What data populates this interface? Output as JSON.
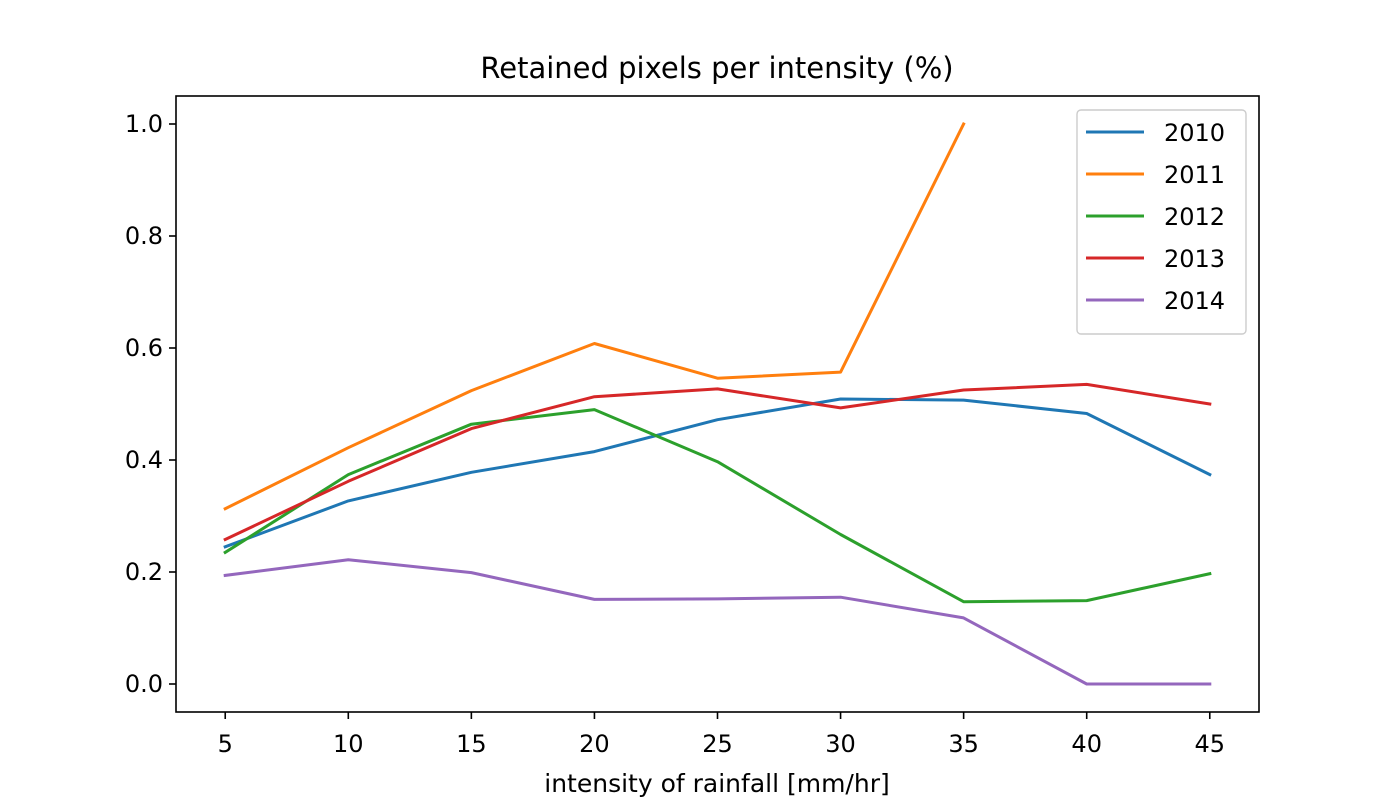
{
  "chart_data": {
    "type": "line",
    "title": "Retained pixels per intensity (%)",
    "xlabel": "intensity of rainfall [mm/hr]",
    "ylabel": "",
    "x": [
      5,
      10,
      15,
      20,
      25,
      30,
      35,
      40,
      45
    ],
    "xticks": [
      "5",
      "10",
      "15",
      "20",
      "25",
      "30",
      "35",
      "40",
      "45"
    ],
    "yticks": [
      "0.0",
      "0.2",
      "0.4",
      "0.6",
      "0.8",
      "1.0"
    ],
    "xlim": [
      3,
      47
    ],
    "ylim": [
      -0.05,
      1.05
    ],
    "grid": false,
    "legend_position": "top-right",
    "series": [
      {
        "name": "2010",
        "color": "#1f77b4",
        "values": [
          0.245,
          0.327,
          0.378,
          0.415,
          0.472,
          0.509,
          0.507,
          0.483,
          0.374
        ]
      },
      {
        "name": "2011",
        "color": "#ff7f0e",
        "values": [
          0.313,
          0.422,
          0.524,
          0.608,
          0.546,
          0.557,
          1.0,
          null,
          null
        ]
      },
      {
        "name": "2012",
        "color": "#2ca02c",
        "values": [
          0.235,
          0.374,
          0.464,
          0.49,
          0.397,
          0.267,
          0.147,
          0.149,
          0.197
        ]
      },
      {
        "name": "2013",
        "color": "#d62728",
        "values": [
          0.258,
          0.362,
          0.456,
          0.513,
          0.527,
          0.493,
          0.525,
          0.535,
          0.5
        ]
      },
      {
        "name": "2014",
        "color": "#9467bd",
        "values": [
          0.194,
          0.222,
          0.199,
          0.151,
          0.152,
          0.155,
          0.118,
          0.0,
          0.0
        ]
      }
    ]
  }
}
